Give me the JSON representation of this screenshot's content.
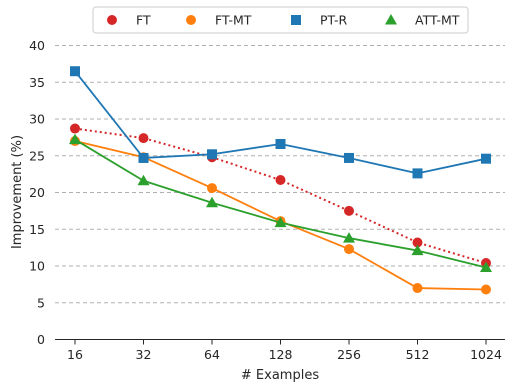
{
  "chart_data": {
    "type": "line",
    "xlabel": "# Examples",
    "ylabel": "Improvement (%)",
    "x_categories": [
      "16",
      "32",
      "64",
      "128",
      "256",
      "512",
      "1024"
    ],
    "ylim": [
      0,
      40
    ],
    "yticks": [
      0,
      5,
      10,
      15,
      20,
      25,
      30,
      35,
      40
    ],
    "grid": "horizontal dashed",
    "legend_position": "top",
    "series": [
      {
        "name": "FT",
        "color": "#d62728",
        "marker": "circle",
        "line_style": "dotted",
        "values": [
          28.7,
          27.4,
          24.8,
          21.7,
          17.5,
          13.2,
          10.4
        ]
      },
      {
        "name": "FT-MT",
        "color": "#ff7f0e",
        "marker": "circle",
        "line_style": "solid",
        "values": [
          27.0,
          24.8,
          20.6,
          16.1,
          12.3,
          7.0,
          6.8
        ]
      },
      {
        "name": "PT-R",
        "color": "#1f77b4",
        "marker": "square",
        "line_style": "solid",
        "values": [
          36.5,
          24.7,
          25.2,
          26.6,
          24.7,
          22.6,
          24.6
        ]
      },
      {
        "name": "ATT-MT",
        "color": "#2ca02c",
        "marker": "triangle",
        "line_style": "solid",
        "values": [
          27.2,
          21.6,
          18.6,
          15.9,
          13.8,
          12.1,
          9.8
        ]
      }
    ]
  }
}
